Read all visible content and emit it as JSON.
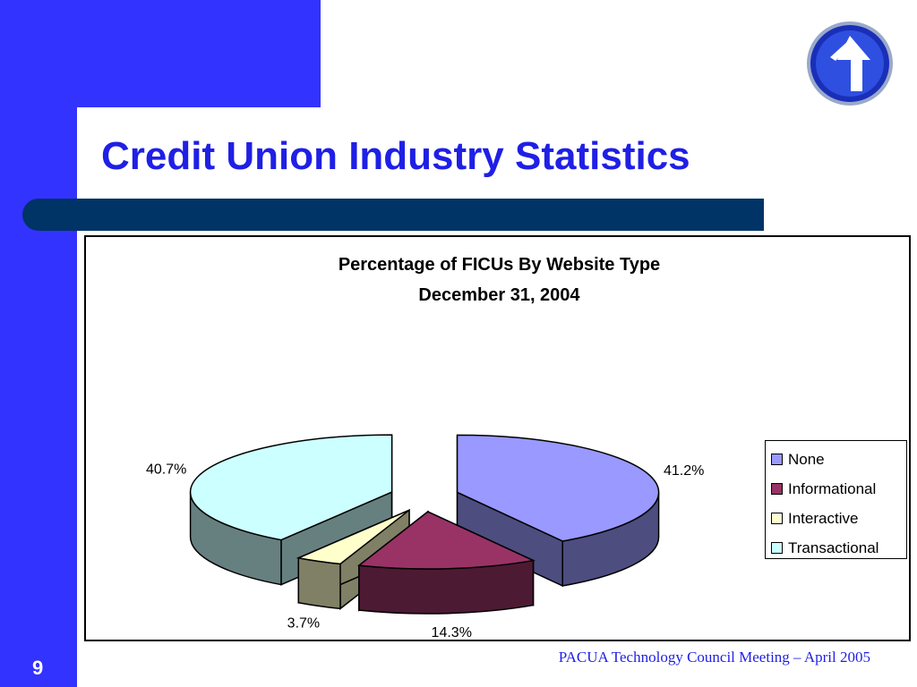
{
  "slide": {
    "title": "Credit Union Industry Statistics",
    "page_number": "9",
    "footer": "PACUA Technology Council Meeting – April 2005",
    "logo_icon": "up-arrow-logo-icon"
  },
  "colors": {
    "background": "#3333ff",
    "title": "#1f1fe6",
    "divider": "#003366"
  },
  "chart_data": {
    "type": "pie",
    "style": "3d-exploded",
    "title": "Percentage of FICUs By Website Type",
    "subtitle": "December 31, 2004",
    "legend_position": "right",
    "slices": [
      {
        "name": "None",
        "value": 41.2,
        "label": "41.2%",
        "color": "#9999ff",
        "side": "#4d4d80"
      },
      {
        "name": "Informational",
        "value": 14.3,
        "label": "14.3%",
        "color": "#993366",
        "side": "#4d1a33"
      },
      {
        "name": "Interactive",
        "value": 3.7,
        "label": "3.7%",
        "color": "#ffffcc",
        "side": "#808066"
      },
      {
        "name": "Transactional",
        "value": 40.7,
        "label": "40.7%",
        "color": "#ccffff",
        "side": "#668080"
      }
    ]
  }
}
